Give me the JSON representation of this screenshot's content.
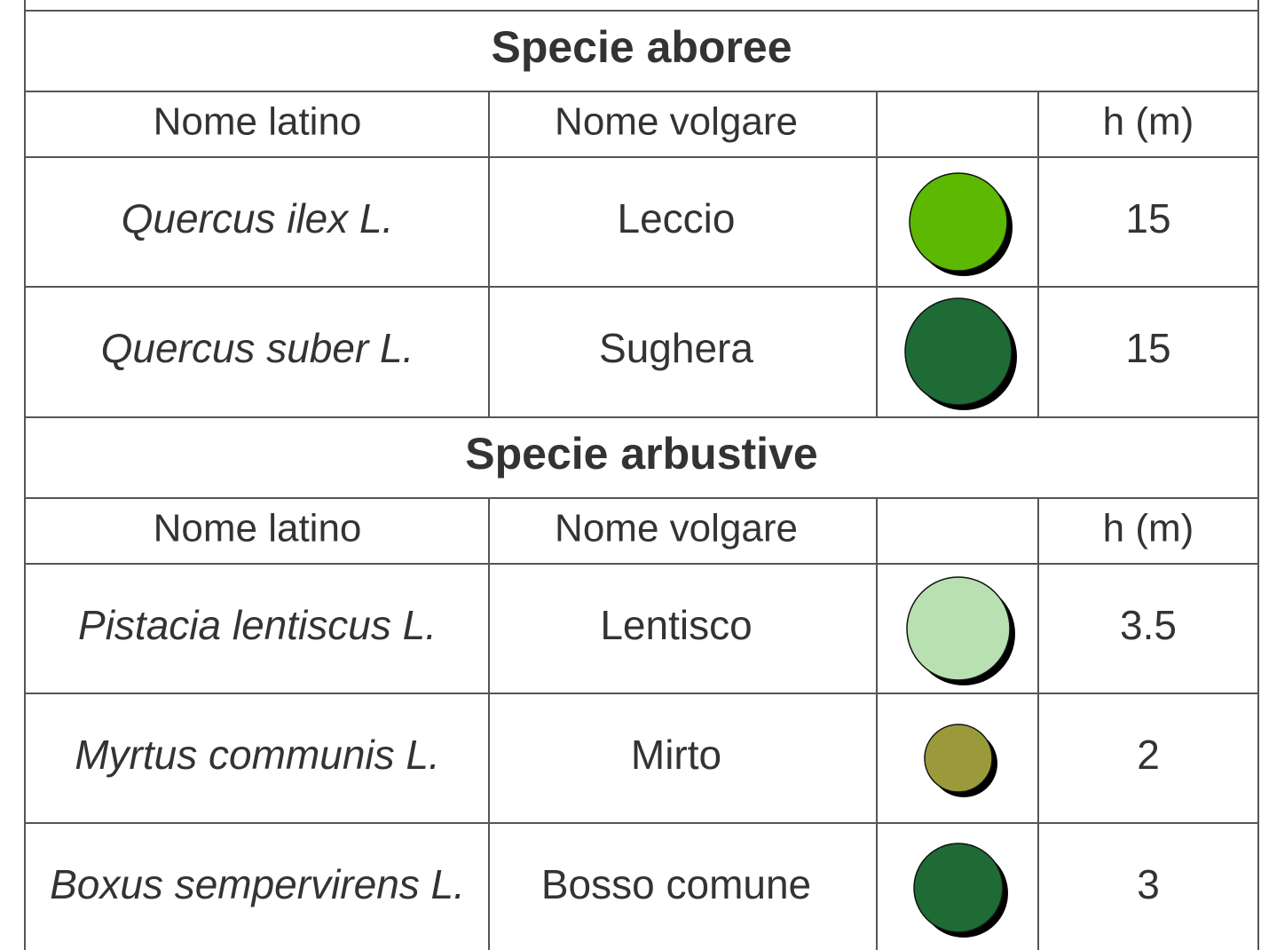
{
  "sections": [
    {
      "title": "Specie aboree",
      "header": {
        "latin": "Nome latino",
        "common": "Nome volgare",
        "height": "h (m)"
      },
      "rows": [
        {
          "latin": "Quercus ilex L.",
          "common": "Leccio",
          "height": 15
        },
        {
          "latin": "Quercus suber L.",
          "common": "Sughera",
          "height": 15
        }
      ]
    },
    {
      "title": "Specie arbustive",
      "header": {
        "latin": "Nome latino",
        "common": "Nome volgare",
        "height": "h (m)"
      },
      "rows": [
        {
          "latin": "Pistacia lentiscus L.",
          "common": "Lentisco",
          "height": 3.5
        },
        {
          "latin": "Myrtus communis L.",
          "common": "Mirto",
          "height": 2
        },
        {
          "latin": "Boxus sempervirens L.",
          "common": "Bosso comune",
          "height": 3
        }
      ]
    }
  ]
}
